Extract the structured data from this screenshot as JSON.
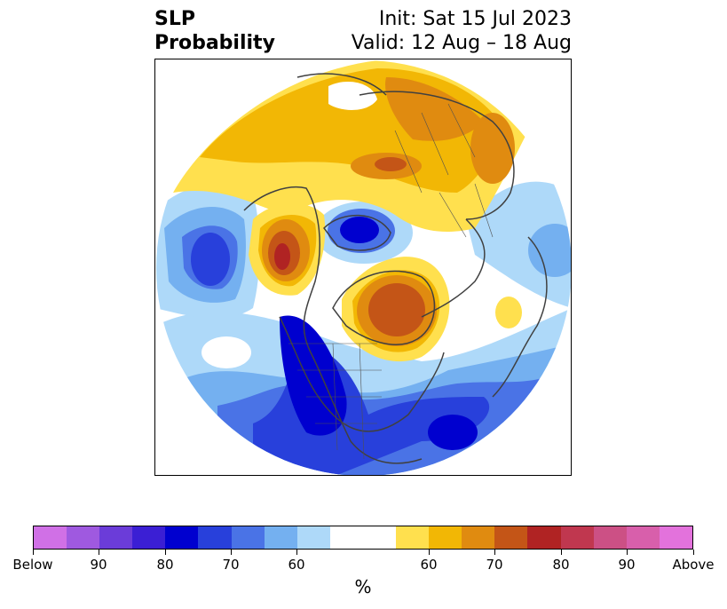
{
  "title": {
    "line1_left": "SLP",
    "line2_left": "Probability",
    "line1_right": "Init: Sat 15 Jul 2023",
    "line2_right": "Valid: 12 Aug – 18 Aug"
  },
  "colorbar": {
    "colors": [
      "#d070e6",
      "#9f59e0",
      "#6b3cd9",
      "#3b1fd4",
      "#0000cf",
      "#2840db",
      "#4a73e6",
      "#74b0f0",
      "#aed9f9",
      "#ffffff",
      "#ffffff",
      "#ffe04e",
      "#f2b705",
      "#e08b10",
      "#c45517",
      "#b02323",
      "#c0374f",
      "#cc5085",
      "#d85fab",
      "#e372dc"
    ],
    "tick_labels": [
      "Below",
      "90",
      "80",
      "70",
      "60",
      "60",
      "70",
      "80",
      "90",
      "Above"
    ],
    "unit_label": "%"
  },
  "map": {
    "projection": "north polar stereographic",
    "field": "SLP probability",
    "anomaly_colors": {
      "below_60": "#aed9f9",
      "below_65": "#74b0f0",
      "below_70": "#4a73e6",
      "below_75": "#2840db",
      "below_80": "#0000cf",
      "above_60": "#ffe04e",
      "above_65": "#f2b705",
      "above_70": "#e08b10",
      "above_75": "#c45517",
      "above_80": "#b02323"
    }
  }
}
